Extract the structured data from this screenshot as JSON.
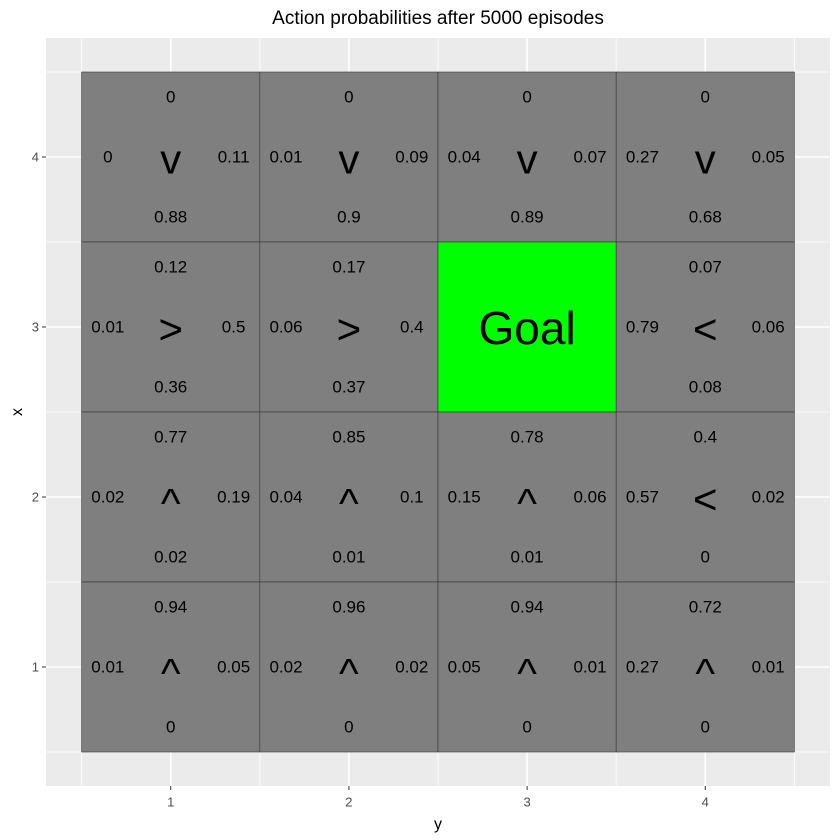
{
  "chart_data": {
    "type": "heatmap",
    "title": "Action probabilities after  5000  episodes",
    "xlabel": "y",
    "ylabel": "x",
    "x_ticks": [
      "1",
      "2",
      "3",
      "4"
    ],
    "y_ticks": [
      "1",
      "2",
      "3",
      "4"
    ],
    "xlim": [
      0.3,
      4.7
    ],
    "ylim": [
      0.3,
      4.7
    ],
    "grid": true,
    "colors": {
      "panel": "#ebebeb",
      "gridline": "#ffffff",
      "cell": "#7f7f7f",
      "cell_border": "#333333",
      "goal": "#00ff00"
    },
    "cells": [
      {
        "x": 4,
        "y": 1,
        "arrow": "v",
        "up": "0",
        "down": "0.88",
        "left": "0",
        "right": "0.11"
      },
      {
        "x": 4,
        "y": 2,
        "arrow": "v",
        "up": "0",
        "down": "0.9",
        "left": "0.01",
        "right": "0.09"
      },
      {
        "x": 4,
        "y": 3,
        "arrow": "v",
        "up": "0",
        "down": "0.89",
        "left": "0.04",
        "right": "0.07"
      },
      {
        "x": 4,
        "y": 4,
        "arrow": "v",
        "up": "0",
        "down": "0.68",
        "left": "0.27",
        "right": "0.05"
      },
      {
        "x": 3,
        "y": 1,
        "arrow": ">",
        "up": "0.12",
        "down": "0.36",
        "left": "0.01",
        "right": "0.5"
      },
      {
        "x": 3,
        "y": 2,
        "arrow": ">",
        "up": "0.17",
        "down": "0.37",
        "left": "0.06",
        "right": "0.4"
      },
      {
        "x": 3,
        "y": 3,
        "goal": true,
        "label": "Goal"
      },
      {
        "x": 3,
        "y": 4,
        "arrow": "<",
        "up": "0.07",
        "down": "0.08",
        "left": "0.79",
        "right": "0.06"
      },
      {
        "x": 2,
        "y": 1,
        "arrow": "^",
        "up": "0.77",
        "down": "0.02",
        "left": "0.02",
        "right": "0.19"
      },
      {
        "x": 2,
        "y": 2,
        "arrow": "^",
        "up": "0.85",
        "down": "0.01",
        "left": "0.04",
        "right": "0.1"
      },
      {
        "x": 2,
        "y": 3,
        "arrow": "^",
        "up": "0.78",
        "down": "0.01",
        "left": "0.15",
        "right": "0.06"
      },
      {
        "x": 2,
        "y": 4,
        "arrow": "<",
        "up": "0.4",
        "down": "0",
        "left": "0.57",
        "right": "0.02"
      },
      {
        "x": 1,
        "y": 1,
        "arrow": "^",
        "up": "0.94",
        "down": "0",
        "left": "0.01",
        "right": "0.05"
      },
      {
        "x": 1,
        "y": 2,
        "arrow": "^",
        "up": "0.96",
        "down": "0",
        "left": "0.02",
        "right": "0.02"
      },
      {
        "x": 1,
        "y": 3,
        "arrow": "^",
        "up": "0.94",
        "down": "0",
        "left": "0.05",
        "right": "0.01"
      },
      {
        "x": 1,
        "y": 4,
        "arrow": "^",
        "up": "0.72",
        "down": "0",
        "left": "0.27",
        "right": "0.01"
      }
    ]
  }
}
